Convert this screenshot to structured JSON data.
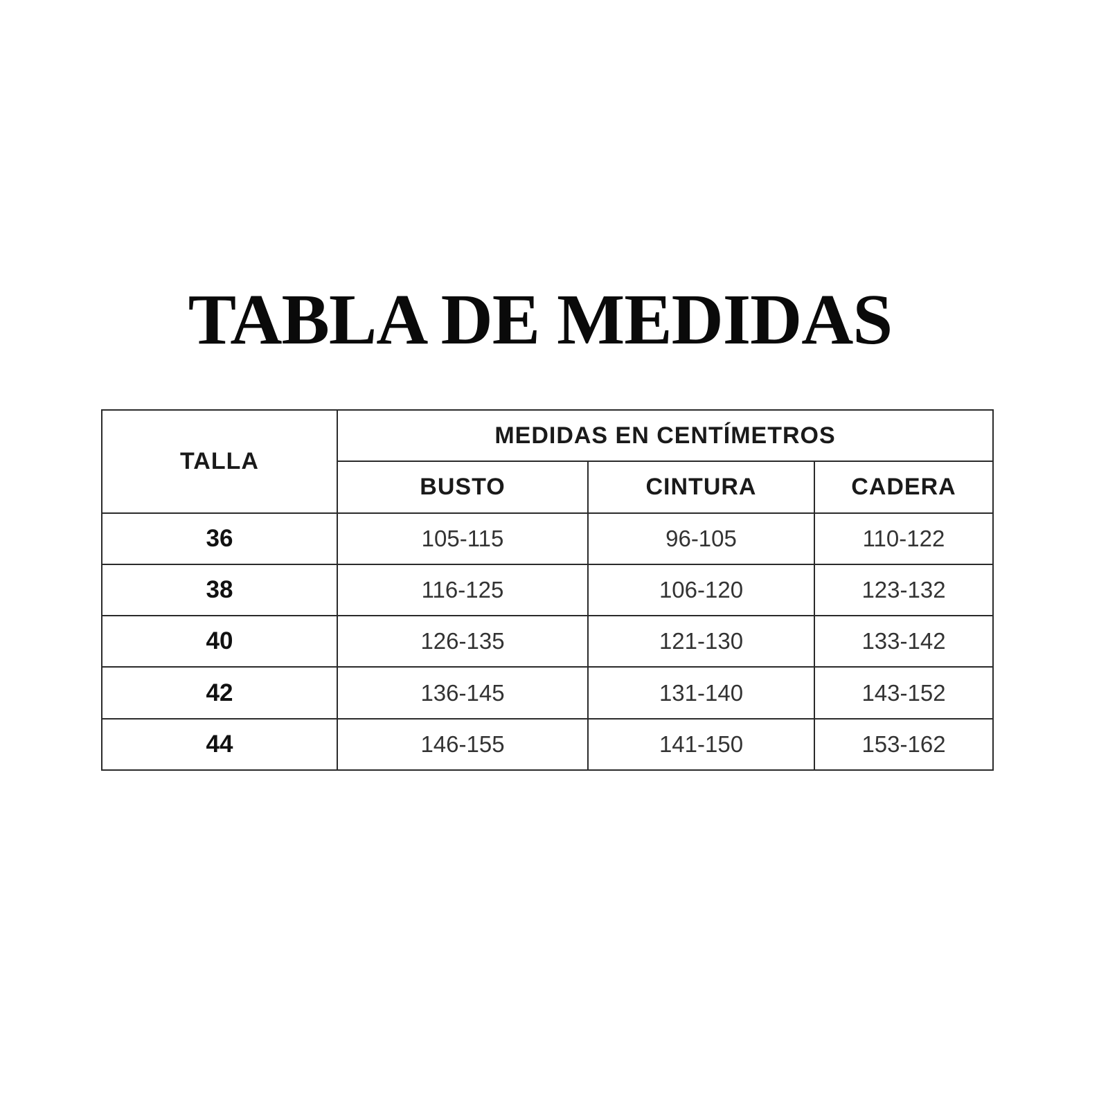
{
  "title": "TABLA DE MEDIDAS",
  "table": {
    "size_header": "TALLA",
    "group_header": "MEDIDAS EN CENTÍMETROS",
    "columns": [
      "BUSTO",
      "CINTURA",
      "CADERA"
    ],
    "rows": [
      {
        "size": "36",
        "values": [
          "105-115",
          "96-105",
          "110-122"
        ]
      },
      {
        "size": "38",
        "values": [
          "116-125",
          "106-120",
          "123-132"
        ]
      },
      {
        "size": "40",
        "values": [
          "126-135",
          "121-130",
          "133-142"
        ]
      },
      {
        "size": "42",
        "values": [
          "136-145",
          "131-140",
          "143-152"
        ]
      },
      {
        "size": "44",
        "values": [
          "146-155",
          "141-150",
          "153-162"
        ]
      }
    ]
  }
}
